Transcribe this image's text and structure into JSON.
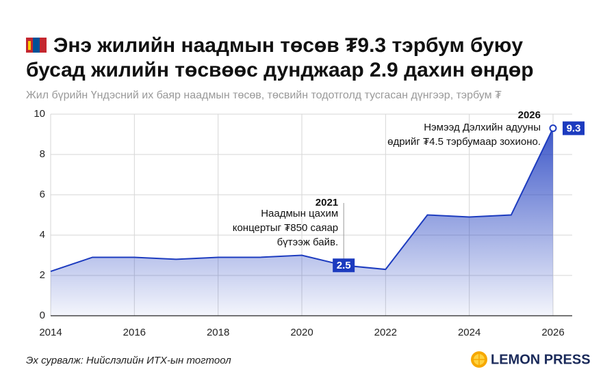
{
  "chart_data": {
    "type": "area",
    "title": [
      "Энэ жилийн наадмын төсөв ₮9.3 тэрбум буюу",
      "бусад жилийн төсвөөс дунджаар 2.9 дахин өндөр"
    ],
    "subtitle": "Жил бүрийн Үндэсний их баяр наадмын төсөв, төсвийн тодотголд тусгасан дүнгээр, тэрбум ₮",
    "x": [
      2014,
      2015,
      2016,
      2017,
      2018,
      2019,
      2020,
      2021,
      2022,
      2023,
      2024,
      2025,
      2026
    ],
    "values": [
      2.2,
      2.9,
      2.9,
      2.8,
      2.9,
      2.9,
      3.0,
      2.5,
      2.3,
      5.0,
      4.9,
      5.0,
      9.3
    ],
    "color": "#1c3bbf",
    "xlim": [
      2014,
      2026
    ],
    "xticks": [
      2014,
      2016,
      2018,
      2020,
      2022,
      2024,
      2026
    ],
    "ylim": [
      0,
      10
    ],
    "yticks": [
      0,
      2,
      4,
      6,
      8,
      10
    ],
    "grid": true,
    "annotations": [
      {
        "title": "2021",
        "lines": [
          "Наадмын цахим",
          "концертыг ₮850 саяар",
          "бүтээж байв."
        ]
      },
      {
        "title": "2026",
        "lines": [
          "Нэмээд Дэлхийн адууны",
          "өдрийг ₮4.5 тэрбумаар зохионо."
        ]
      }
    ],
    "source": "Эх сурвалж: Нийслэлийн ИТХ-ын тогтоол",
    "brand": "LEMON PRESS"
  }
}
